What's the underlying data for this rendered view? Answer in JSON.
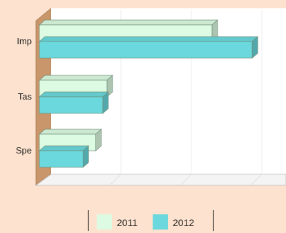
{
  "chart_data": {
    "type": "bar",
    "orientation": "horizontal",
    "three_d": true,
    "categories": [
      "Imp",
      "Tas",
      "Spe"
    ],
    "series": [
      {
        "name": "2011",
        "values": [
          245,
          96,
          80
        ],
        "color": "#dcfbe2"
      },
      {
        "name": "2012",
        "values": [
          302,
          90,
          62
        ],
        "color": "#6ad8dc"
      }
    ],
    "xlim": [
      0,
      350
    ],
    "grid": true,
    "legend_position": "bottom"
  },
  "colors": {
    "background": "#fde3cf",
    "wall_side": "#c9956a",
    "plot_floor": "#ffffff"
  }
}
